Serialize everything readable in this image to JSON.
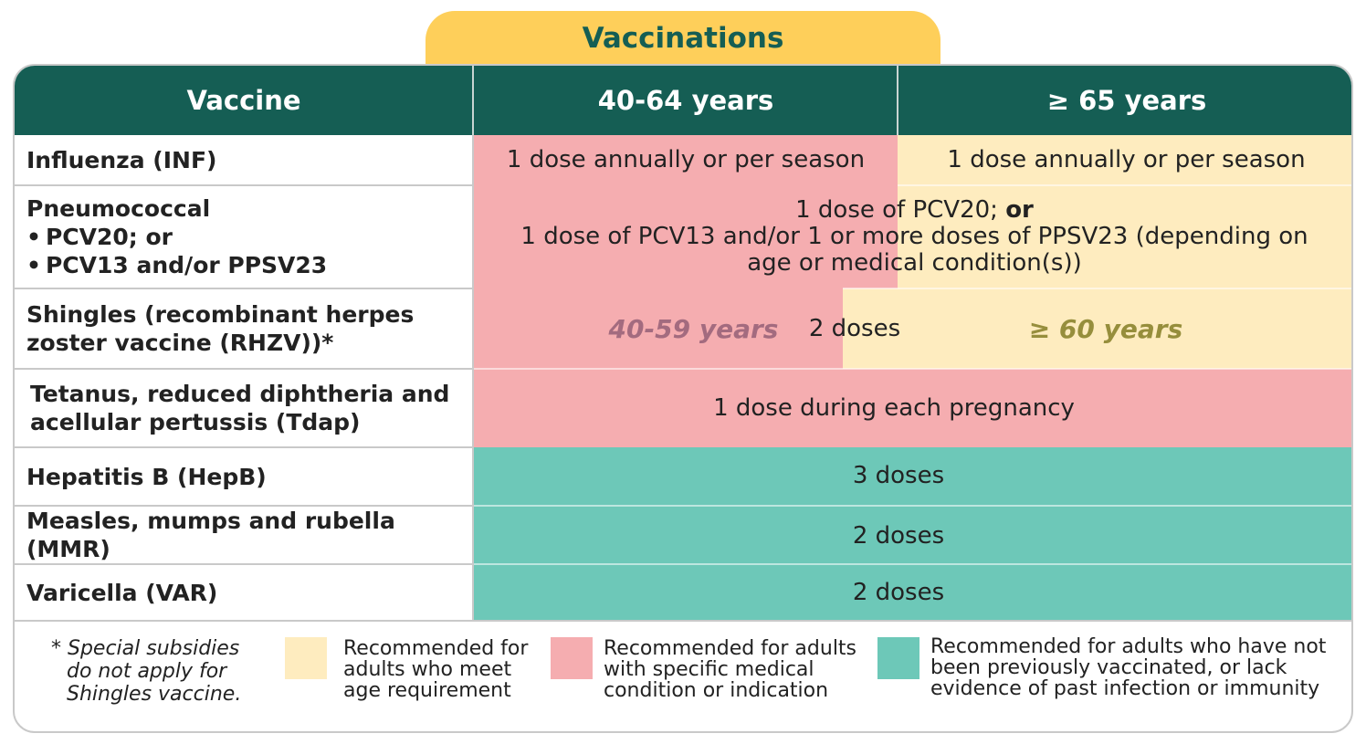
{
  "title": "Vaccinations",
  "header": {
    "vaccine": "Vaccine",
    "age_40_64": "40-64 years",
    "age_65_plus": "≥ 65 years"
  },
  "rows": {
    "influenza": {
      "name": "Influenza (INF)",
      "dose_40_64": "1 dose annually or per season",
      "dose_65_plus": "1 dose annually or per season"
    },
    "pneumococcal": {
      "name": "Pneumococcal",
      "option_1": "PCV20; or",
      "option_2": "PCV13 and/or PPSV23",
      "dose_line_1": "1 dose of PCV20; ",
      "dose_line_1_bold": "or",
      "dose_line_2": "1 dose of PCV13 and/or 1 or more doses of PPSV23 (depending on",
      "dose_line_3": "age or medical condition(s))"
    },
    "shingles": {
      "name_line_1": "Shingles (recombinant herpes",
      "name_line_2": "zoster vaccine (RHZV))*",
      "age_low": "40-59 years",
      "dose": "2 doses",
      "age_high": "≥ 60 years"
    },
    "tdap": {
      "name_line_1": "Tetanus, reduced diphtheria and",
      "name_line_2": "acellular pertussis (Tdap)",
      "dose": "1 dose during each pregnancy"
    },
    "hepb": {
      "name": "Hepatitis B (HepB)",
      "dose": "3 doses"
    },
    "mmr": {
      "name": "Measles, mumps and rubella (MMR)",
      "dose": "2 doses"
    },
    "varicella": {
      "name": "Varicella (VAR)",
      "dose": "2 doses"
    }
  },
  "footnote": {
    "line_1": "* Special subsidies",
    "line_2": "do not apply for",
    "line_3": "Shingles vaccine."
  },
  "legend": {
    "age": {
      "line_1": "Recommended for",
      "line_2": "adults who meet",
      "line_3": "age requirement",
      "color": "#feecbf"
    },
    "medical": {
      "line_1": "Recommended for adults",
      "line_2": "with specific medical",
      "line_3": "condition or indication",
      "color": "#f5adb0"
    },
    "unvaccinated": {
      "line_1": "Recommended for adults who have not",
      "line_2": "been previously vaccinated, or lack",
      "line_3": "evidence of past infection or immunity",
      "color": "#6dc8b8"
    }
  },
  "colors": {
    "header": "#155e54",
    "tab": "#fecf5a",
    "age_label_low": "#a36b7f",
    "age_label_high": "#968e3c"
  }
}
